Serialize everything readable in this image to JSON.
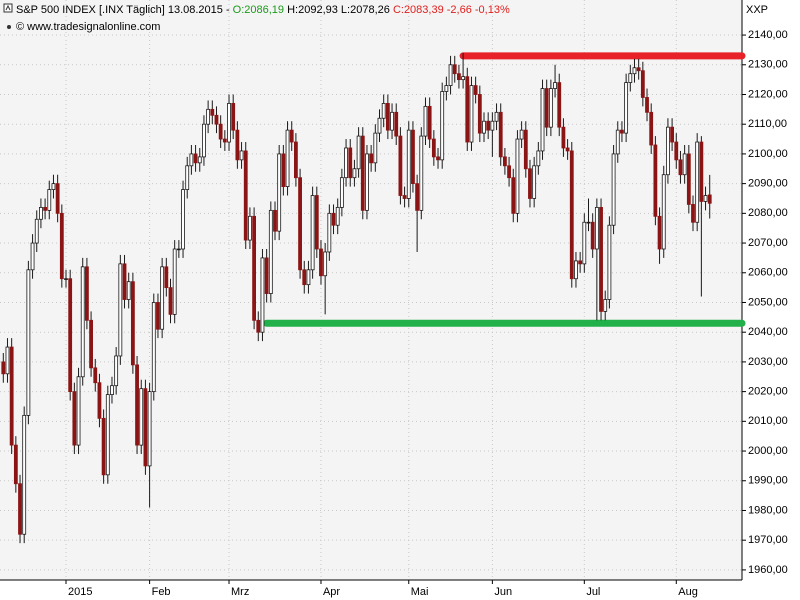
{
  "chart_data": {
    "type": "candlestick",
    "title": "S&P 500 INDEX [.INX  Täglich] 13.08.2015 -",
    "header_open": "O:2086,19",
    "header_high_low": "H:2092,93 L:2078,26",
    "header_close": "C:2083,39 -2,66 -0,13%",
    "source": "© www.tradesignalonline.com",
    "axis_label": "XXP",
    "up_color": "#ffffff",
    "down_color": "#8b1414",
    "grid": true,
    "ylim": [
      1956.6,
      2151.8
    ],
    "yticks": [
      {
        "value": 1960,
        "label": "1960,00"
      },
      {
        "value": 1970,
        "label": "1970,00"
      },
      {
        "value": 1980,
        "label": "1980,00"
      },
      {
        "value": 1990,
        "label": "1990,00"
      },
      {
        "value": 2000,
        "label": "2000,00"
      },
      {
        "value": 2010,
        "label": "2010,00"
      },
      {
        "value": 2020,
        "label": "2020,00"
      },
      {
        "value": 2030,
        "label": "2030,00"
      },
      {
        "value": 2040,
        "label": "2040,00"
      },
      {
        "value": 2050,
        "label": "2050,00"
      },
      {
        "value": 2060,
        "label": "2060,00"
      },
      {
        "value": 2070,
        "label": "2070,00"
      },
      {
        "value": 2080,
        "label": "2080,00"
      },
      {
        "value": 2090,
        "label": "2090,00"
      },
      {
        "value": 2100,
        "label": "2100,00"
      },
      {
        "value": 2110,
        "label": "2110,00"
      },
      {
        "value": 2120,
        "label": "2120,00"
      },
      {
        "value": 2130,
        "label": "2130,00"
      },
      {
        "value": 2140,
        "label": "2140,00"
      }
    ],
    "levels": [
      {
        "value": 2133,
        "color": "#e8202a",
        "start": 110
      },
      {
        "value": 2043,
        "color": "#22b04a",
        "start": 63
      }
    ],
    "categories": [
      null,
      null,
      null,
      null,
      null,
      null,
      null,
      null,
      null,
      null,
      null,
      null,
      null,
      null,
      null,
      "2015",
      null,
      null,
      null,
      null,
      null,
      null,
      null,
      null,
      null,
      null,
      null,
      null,
      null,
      null,
      null,
      null,
      null,
      null,
      null,
      "Feb",
      null,
      null,
      null,
      null,
      null,
      null,
      null,
      null,
      null,
      null,
      null,
      null,
      null,
      null,
      null,
      null,
      null,
      null,
      "Mrz",
      null,
      null,
      null,
      null,
      null,
      null,
      null,
      null,
      null,
      null,
      null,
      null,
      null,
      null,
      null,
      null,
      null,
      null,
      null,
      null,
      null,
      "Apr",
      null,
      null,
      null,
      null,
      null,
      null,
      null,
      null,
      null,
      null,
      null,
      null,
      null,
      null,
      null,
      null,
      null,
      null,
      null,
      null,
      "Mai",
      null,
      null,
      null,
      null,
      null,
      null,
      null,
      null,
      null,
      null,
      null,
      null,
      null,
      null,
      null,
      null,
      null,
      null,
      null,
      "Jun",
      null,
      null,
      null,
      null,
      null,
      null,
      null,
      null,
      null,
      null,
      null,
      null,
      null,
      null,
      null,
      null,
      null,
      null,
      null,
      null,
      null,
      "Jul",
      null,
      null,
      null,
      null,
      null,
      null,
      null,
      null,
      null,
      null,
      null,
      null,
      null,
      null,
      null,
      null,
      null,
      null,
      null,
      null,
      null,
      "Aug",
      null,
      null,
      null,
      null,
      null,
      null,
      null,
      null
    ],
    "open": [
      2030,
      2026,
      2035,
      2002,
      1989,
      1972,
      2012,
      2061,
      2070,
      2078,
      2082,
      2081,
      2088,
      2090,
      2080,
      2058,
      2058,
      2020,
      2002,
      2025,
      2062,
      2044,
      2028,
      2023,
      2011,
      1992,
      2019,
      2022,
      2032,
      2063,
      2051,
      2057,
      2029,
      2002,
      2021,
      1995,
      2020,
      2050,
      2041,
      2062,
      2055,
      2046,
      2068,
      2068,
      2088,
      2096,
      2100,
      2097,
      2099,
      2110,
      2115,
      2113,
      2110,
      2105,
      2104,
      2117,
      2108,
      2098,
      2101,
      2071,
      2079,
      2044,
      2040,
      2065,
      2053,
      2081,
      2074,
      2100,
      2089,
      2108,
      2104,
      2092,
      2061,
      2056,
      2061,
      2086,
      2068,
      2059,
      2067,
      2080,
      2076,
      2082,
      2092,
      2102,
      2092,
      2095,
      2106,
      2081,
      2100,
      2097,
      2107,
      2112,
      2117,
      2108,
      2114,
      2106,
      2086,
      2085,
      2108,
      2090,
      2081,
      2106,
      2116,
      2105,
      2099,
      2098,
      2121,
      2123,
      2130,
      2127,
      2125,
      2126,
      2104,
      2123,
      2120,
      2107,
      2111,
      2108,
      2111,
      2114,
      2099,
      2096,
      2092,
      2080,
      2105,
      2108,
      2095,
      2085,
      2096,
      2101,
      2122,
      2109,
      2122,
      2124,
      2109,
      2102,
      2101,
      2058,
      2064,
      2063,
      2077,
      2077,
      2068,
      2082,
      2047,
      2051,
      2076,
      2100,
      2108,
      2107,
      2124,
      2127,
      2129,
      2128,
      2119,
      2114,
      2103,
      2079,
      2068,
      2093,
      2109,
      2104,
      2098,
      2093,
      2100,
      2083,
      2077,
      2104,
      2084,
      2086.19
    ],
    "high": [
      2033,
      2038,
      2038,
      2005,
      1992,
      2015,
      2064,
      2073,
      2081,
      2085,
      2085,
      2091,
      2093,
      2093,
      2083,
      2061,
      2061,
      2023,
      2028,
      2065,
      2065,
      2047,
      2031,
      2026,
      2014,
      2022,
      2025,
      2035,
      2066,
      2066,
      2060,
      2060,
      2032,
      2024,
      2024,
      2023,
      2053,
      2053,
      2065,
      2065,
      2058,
      2071,
      2071,
      2091,
      2099,
      2103,
      2103,
      2102,
      2113,
      2118,
      2118,
      2116,
      2113,
      2108,
      2120,
      2120,
      2111,
      2104,
      2104,
      2082,
      2082,
      2047,
      2068,
      2068,
      2084,
      2084,
      2103,
      2103,
      2111,
      2111,
      2107,
      2095,
      2064,
      2064,
      2089,
      2089,
      2071,
      2070,
      2083,
      2083,
      2085,
      2095,
      2105,
      2105,
      2098,
      2109,
      2109,
      2103,
      2103,
      2110,
      2115,
      2120,
      2120,
      2117,
      2117,
      2109,
      2089,
      2111,
      2111,
      2093,
      2109,
      2119,
      2119,
      2108,
      2102,
      2124,
      2126,
      2133,
      2133,
      2130,
      2134,
      2129,
      2126,
      2126,
      2123,
      2114,
      2114,
      2114,
      2117,
      2117,
      2102,
      2099,
      2095,
      2108,
      2111,
      2111,
      2098,
      2099,
      2104,
      2125,
      2125,
      2125,
      2130,
      2127,
      2112,
      2105,
      2104,
      2067,
      2067,
      2080,
      2085,
      2080,
      2085,
      2085,
      2054,
      2079,
      2103,
      2111,
      2111,
      2127,
      2130,
      2132,
      2132,
      2131,
      2122,
      2117,
      2106,
      2082,
      2096,
      2112,
      2112,
      2107,
      2101,
      2103,
      2103,
      2086,
      2107,
      2106,
      2089,
      2092.93
    ],
    "low": [
      2023,
      2023,
      1999,
      1986,
      1969,
      1969,
      2009,
      2058,
      2067,
      2075,
      2078,
      2078,
      2085,
      2077,
      2055,
      2055,
      2017,
      1999,
      1999,
      2022,
      2041,
      2025,
      2020,
      2008,
      1989,
      1989,
      2016,
      2019,
      2029,
      2048,
      2048,
      2026,
      1999,
      1999,
      1992,
      1981,
      2017,
      2038,
      2038,
      2052,
      2043,
      2043,
      2065,
      2065,
      2085,
      2093,
      2094,
      2094,
      2096,
      2107,
      2110,
      2107,
      2102,
      2101,
      2101,
      2105,
      2095,
      2095,
      2068,
      2068,
      2041,
      2037,
      2037,
      2050,
      2050,
      2071,
      2071,
      2086,
      2086,
      2101,
      2089,
      2058,
      2053,
      2053,
      2058,
      2065,
      2056,
      2046,
      2064,
      2073,
      2073,
      2079,
      2089,
      2089,
      2089,
      2092,
      2078,
      2078,
      2094,
      2094,
      2104,
      2109,
      2105,
      2105,
      2103,
      2083,
      2082,
      2082,
      2087,
      2067,
      2078,
      2103,
      2102,
      2096,
      2095,
      2095,
      2118,
      2120,
      2124,
      2122,
      2122,
      2101,
      2101,
      2117,
      2104,
      2104,
      2105,
      2099,
      2108,
      2096,
      2093,
      2089,
      2077,
      2077,
      2102,
      2092,
      2082,
      2082,
      2093,
      2098,
      2106,
      2106,
      2119,
      2106,
      2099,
      2098,
      2055,
      2055,
      2060,
      2060,
      2074,
      2065,
      2044,
      2044,
      2044,
      2048,
      2073,
      2097,
      2104,
      2104,
      2121,
      2124,
      2125,
      2116,
      2111,
      2100,
      2076,
      2063,
      2065,
      2090,
      2101,
      2095,
      2090,
      2090,
      2080,
      2074,
      2074,
      2052,
      2081,
      2078.26
    ],
    "close": [
      2026,
      2035,
      2002,
      1989,
      1972,
      2012,
      2061,
      2070,
      2078,
      2082,
      2081,
      2088,
      2090,
      2080,
      2058,
      2058,
      2020,
      2002,
      2025,
      2062,
      2044,
      2028,
      2023,
      2011,
      1992,
      2019,
      2022,
      2032,
      2063,
      2051,
      2057,
      2029,
      2002,
      2021,
      1995,
      2020,
      2050,
      2041,
      2062,
      2055,
      2046,
      2068,
      2068,
      2088,
      2096,
      2100,
      2097,
      2099,
      2110,
      2115,
      2113,
      2110,
      2105,
      2104,
      2117,
      2108,
      2098,
      2101,
      2071,
      2079,
      2044,
      2040,
      2065,
      2053,
      2081,
      2074,
      2100,
      2089,
      2108,
      2104,
      2092,
      2061,
      2056,
      2061,
      2086,
      2068,
      2059,
      2067,
      2080,
      2076,
      2082,
      2092,
      2102,
      2092,
      2095,
      2106,
      2081,
      2100,
      2097,
      2107,
      2112,
      2117,
      2108,
      2114,
      2106,
      2086,
      2085,
      2108,
      2090,
      2081,
      2106,
      2116,
      2105,
      2099,
      2098,
      2121,
      2123,
      2130,
      2127,
      2125,
      2126,
      2104,
      2123,
      2120,
      2107,
      2111,
      2108,
      2111,
      2114,
      2099,
      2096,
      2092,
      2080,
      2105,
      2108,
      2095,
      2085,
      2096,
      2101,
      2122,
      2109,
      2122,
      2124,
      2109,
      2102,
      2101,
      2058,
      2064,
      2063,
      2077,
      2077,
      2068,
      2082,
      2047,
      2051,
      2076,
      2100,
      2108,
      2107,
      2124,
      2127,
      2129,
      2128,
      2119,
      2114,
      2103,
      2079,
      2068,
      2093,
      2109,
      2104,
      2098,
      2093,
      2100,
      2083,
      2077,
      2104,
      2084,
      2086,
      2083.39
    ]
  }
}
